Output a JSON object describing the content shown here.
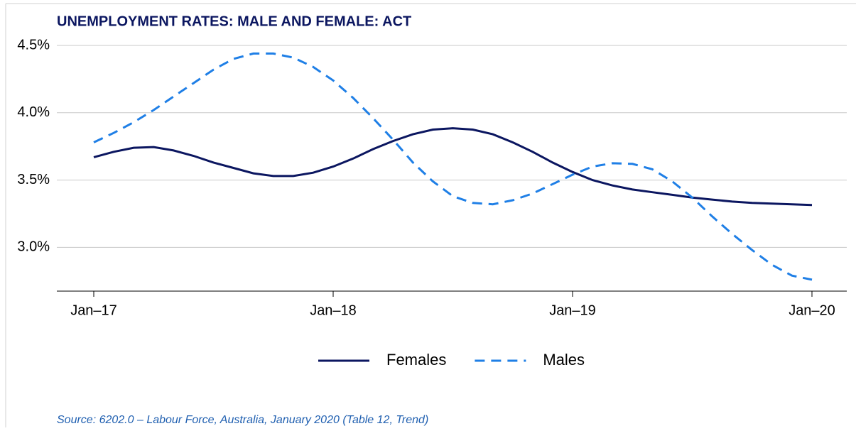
{
  "chart_data": {
    "type": "line",
    "title": "UNEMPLOYMENT RATES: MALE AND FEMALE: ACT",
    "source": "Source: 6202.0 – Labour Force, Australia, January 2020 (Table 12, Trend)",
    "categories": [
      "Jan–17",
      null,
      null,
      null,
      null,
      null,
      null,
      null,
      null,
      null,
      null,
      null,
      "Jan–18",
      null,
      null,
      null,
      null,
      null,
      null,
      null,
      null,
      null,
      null,
      null,
      "Jan–19",
      null,
      null,
      null,
      null,
      null,
      null,
      null,
      null,
      null,
      null,
      null,
      "Jan–20"
    ],
    "series": [
      {
        "name": "Females",
        "color": "#0b1660",
        "dash": false,
        "values": [
          3.67,
          3.71,
          3.74,
          3.745,
          3.72,
          3.68,
          3.63,
          3.59,
          3.55,
          3.53,
          3.53,
          3.555,
          3.6,
          3.66,
          3.73,
          3.79,
          3.84,
          3.875,
          3.885,
          3.875,
          3.84,
          3.78,
          3.71,
          3.63,
          3.56,
          3.5,
          3.46,
          3.43,
          3.41,
          3.39,
          3.37,
          3.355,
          3.34,
          3.33,
          3.325,
          3.32,
          3.315
        ]
      },
      {
        "name": "Males",
        "color": "#1f7fe6",
        "dash": true,
        "values": [
          3.78,
          3.85,
          3.93,
          4.02,
          4.12,
          4.22,
          4.32,
          4.4,
          4.44,
          4.44,
          4.41,
          4.34,
          4.24,
          4.11,
          3.96,
          3.8,
          3.63,
          3.49,
          3.38,
          3.33,
          3.32,
          3.35,
          3.4,
          3.47,
          3.54,
          3.6,
          3.625,
          3.62,
          3.58,
          3.49,
          3.37,
          3.23,
          3.1,
          2.98,
          2.87,
          2.79,
          2.76
        ]
      }
    ],
    "ylim": [
      2.675,
      4.5
    ],
    "yticks": [
      {
        "value": 3.0,
        "label": "3.0%"
      },
      {
        "value": 3.5,
        "label": "3.5%"
      },
      {
        "value": 4.0,
        "label": "4.0%"
      },
      {
        "value": 4.5,
        "label": "4.5%"
      }
    ],
    "grid": true,
    "legend": "bottom"
  }
}
